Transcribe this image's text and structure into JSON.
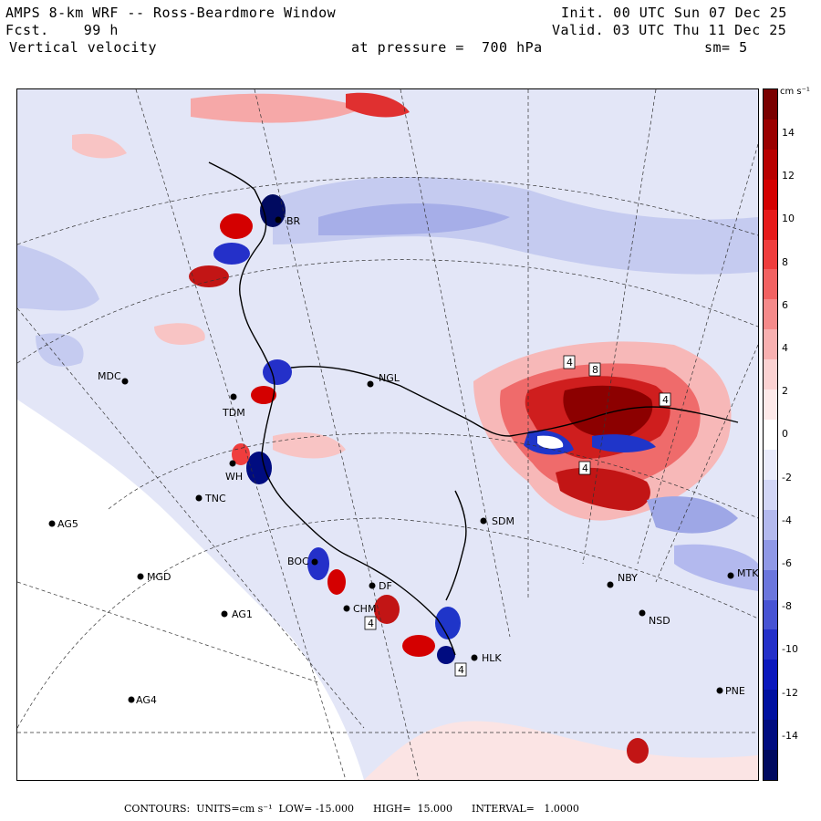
{
  "header": {
    "title": "AMPS 8-km WRF -- Ross-Beardmore Window",
    "forecast": "Fcst.    99 h",
    "field": "Vertical velocity",
    "pressure": "at pressure =  700 hPa",
    "init": "Init. 00 UTC Sun 07 Dec 25",
    "valid": "Valid. 03 UTC Thu 11 Dec 25",
    "smoothing": "sm= 5"
  },
  "colorbar": {
    "units": "cm s⁻¹",
    "ticks": [
      "14",
      "12",
      "10",
      "8",
      "6",
      "4",
      "2",
      "0",
      "-2",
      "-4",
      "-6",
      "-8",
      "-10",
      "-12",
      "-14"
    ],
    "colors": [
      "#7a0000",
      "#9a0000",
      "#b80000",
      "#d40000",
      "#e61a1a",
      "#ef3d3d",
      "#f26262",
      "#f58a8a",
      "#f8b0b0",
      "#fbd2d2",
      "#fde9e9",
      "#ffffff",
      "#e9ebfb",
      "#d2d6f6",
      "#b3b9ee",
      "#8f98e6",
      "#6b76dd",
      "#4753d4",
      "#2430c9",
      "#0b18bd",
      "#0010a0",
      "#000c80",
      "#000a60"
    ]
  },
  "stations": [
    {
      "code": "BR"
    },
    {
      "code": "MDC"
    },
    {
      "code": "TDM"
    },
    {
      "code": "NGL"
    },
    {
      "code": "WH"
    },
    {
      "code": "TNC"
    },
    {
      "code": "AG5"
    },
    {
      "code": "MGD"
    },
    {
      "code": "AG1"
    },
    {
      "code": "AG4"
    },
    {
      "code": "SDM"
    },
    {
      "code": "NBY"
    },
    {
      "code": "NSD"
    },
    {
      "code": "MTK"
    },
    {
      "code": "PNE"
    },
    {
      "code": "HLK"
    },
    {
      "code": "CHM"
    },
    {
      "code": "BOC"
    },
    {
      "code": "DF"
    }
  ],
  "contour_labels": [
    "4",
    "8",
    "4",
    "4",
    "4",
    "4"
  ],
  "footer": "CONTOURS:  UNITS=cm s⁻¹  LOW= -15.000      HIGH=  15.000      INTERVAL=   1.0000"
}
